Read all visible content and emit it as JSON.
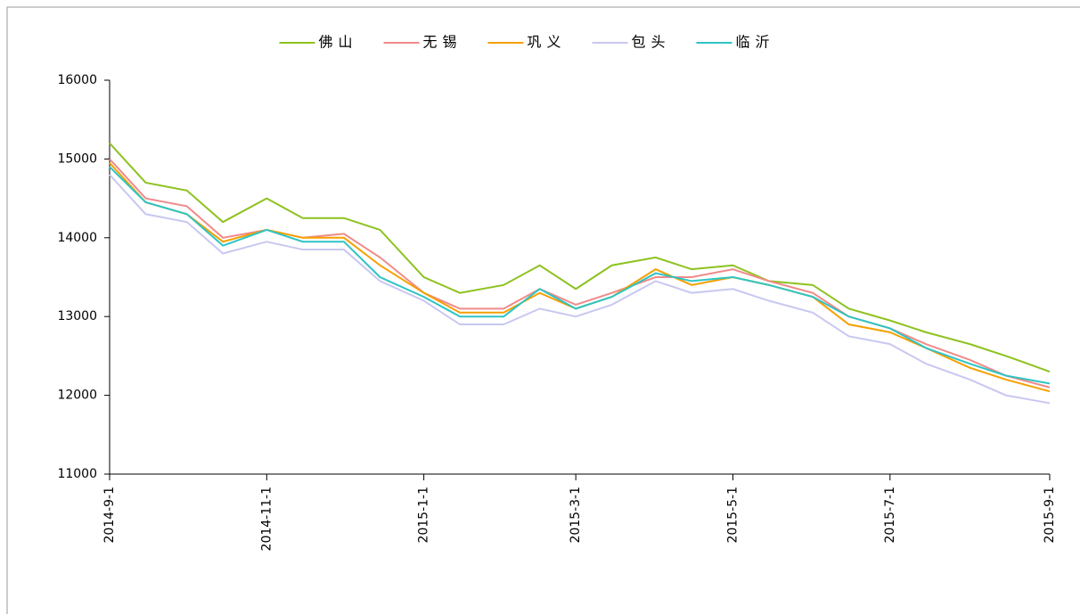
{
  "chart_data": {
    "type": "line",
    "x": [
      "2014-9-1",
      "2014-9-15",
      "2014-10-1",
      "2014-10-15",
      "2014-11-1",
      "2014-11-15",
      "2014-12-1",
      "2014-12-15",
      "2015-1-1",
      "2015-1-15",
      "2015-2-1",
      "2015-2-15",
      "2015-3-1",
      "2015-3-15",
      "2015-4-1",
      "2015-4-15",
      "2015-5-1",
      "2015-5-15",
      "2015-6-1",
      "2015-6-15",
      "2015-7-1",
      "2015-7-15",
      "2015-8-1",
      "2015-8-15",
      "2015-9-1"
    ],
    "series": [
      {
        "name": "佛山",
        "color": "#8dc21f",
        "values": [
          15200,
          14700,
          14600,
          14200,
          14500,
          14250,
          14250,
          14100,
          13500,
          13300,
          13400,
          13650,
          13350,
          13650,
          13750,
          13600,
          13650,
          13450,
          13400,
          13100,
          12950,
          12800,
          12650,
          12500,
          12300
        ]
      },
      {
        "name": "无锡",
        "color": "#f08a8a",
        "values": [
          15000,
          14500,
          14400,
          14000,
          14100,
          14000,
          14050,
          13750,
          13300,
          13100,
          13100,
          13350,
          13150,
          13300,
          13500,
          13500,
          13600,
          13450,
          13300,
          13000,
          12850,
          12650,
          12450,
          12250,
          12100
        ]
      },
      {
        "name": "巩义",
        "color": "#f5a000",
        "values": [
          14950,
          14450,
          14300,
          13950,
          14100,
          14000,
          14000,
          13650,
          13300,
          13050,
          13050,
          13300,
          13100,
          13250,
          13600,
          13400,
          13500,
          13400,
          13250,
          12900,
          12800,
          12600,
          12350,
          12200,
          12050
        ]
      },
      {
        "name": "包头",
        "color": "#c8c8f0",
        "values": [
          14800,
          14300,
          14200,
          13800,
          13950,
          13850,
          13850,
          13450,
          13200,
          12900,
          12900,
          13100,
          13000,
          13150,
          13450,
          13300,
          13350,
          13200,
          13050,
          12750,
          12650,
          12400,
          12200,
          12000,
          11900
        ]
      },
      {
        "name": "临沂",
        "color": "#2ec4c4",
        "values": [
          14900,
          14450,
          14300,
          13900,
          14100,
          13950,
          13950,
          13500,
          13250,
          13000,
          13000,
          13350,
          13100,
          13250,
          13550,
          13450,
          13500,
          13400,
          13250,
          13000,
          12850,
          12600,
          12400,
          12250,
          12150
        ]
      }
    ],
    "ylim": [
      11000,
      16000
    ],
    "yticks": [
      11000,
      12000,
      13000,
      14000,
      15000,
      16000
    ],
    "xlim": [
      "2014-9-1",
      "2015-9-1"
    ],
    "xticks": [
      "2014-9-1",
      "2014-11-1",
      "2015-1-1",
      "2015-3-1",
      "2015-5-1",
      "2015-7-1",
      "2015-9-1"
    ],
    "legend": "top"
  }
}
